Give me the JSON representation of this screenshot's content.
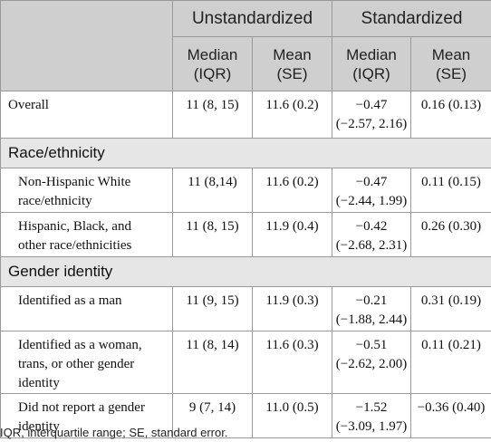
{
  "header": {
    "group_unstd": "Unstandardized",
    "group_std": "Standardized",
    "cols": [
      {
        "line1": "Median",
        "line2": "(IQR)"
      },
      {
        "line1": "Mean",
        "line2": "(SE)"
      },
      {
        "line1": "Median",
        "line2": "(IQR)"
      },
      {
        "line1": "Mean",
        "line2": "(SE)"
      }
    ]
  },
  "overall": {
    "label": "Overall",
    "cells": [
      {
        "l1": "11 (8, 15)",
        "l2": ""
      },
      {
        "l1": "11.6 (0.2)",
        "l2": ""
      },
      {
        "l1": "−0.47",
        "l2": "(−2.57, 2.16)"
      },
      {
        "l1": "0.16 (0.13)",
        "l2": ""
      }
    ]
  },
  "sections": [
    {
      "title": "Race/ethnicity",
      "rows": [
        {
          "label1": "Non-Hispanic White",
          "label2": "race/ethnicity",
          "label3": "",
          "cells": [
            {
              "l1": "11 (8,14)",
              "l2": ""
            },
            {
              "l1": "11.6 (0.2)",
              "l2": ""
            },
            {
              "l1": "−0.47",
              "l2": "(−2.44, 1.99)"
            },
            {
              "l1": "0.11 (0.15)",
              "l2": ""
            }
          ]
        },
        {
          "label1": "Hispanic, Black, and",
          "label2": "other race/ethnicities",
          "label3": "",
          "cells": [
            {
              "l1": "11 (8, 15)",
              "l2": ""
            },
            {
              "l1": "11.9 (0.4)",
              "l2": ""
            },
            {
              "l1": "−0.42",
              "l2": "(−2.68, 2.31)"
            },
            {
              "l1": "0.26 (0.30)",
              "l2": ""
            }
          ]
        }
      ]
    },
    {
      "title": "Gender identity",
      "rows": [
        {
          "label1": "Identified as a man",
          "label2": "",
          "label3": "",
          "cells": [
            {
              "l1": "11 (9, 15)",
              "l2": ""
            },
            {
              "l1": "11.9 (0.3)",
              "l2": ""
            },
            {
              "l1": "−0.21",
              "l2": "(−1.88, 2.44)"
            },
            {
              "l1": "0.31 (0.19)",
              "l2": ""
            }
          ]
        },
        {
          "label1": "Identified as a woman,",
          "label2": "trans, or other gender",
          "label3": "identity",
          "cells": [
            {
              "l1": "11 (8, 14)",
              "l2": ""
            },
            {
              "l1": "11.6 (0.3)",
              "l2": ""
            },
            {
              "l1": "−0.51",
              "l2": "(−2.62, 2.00)"
            },
            {
              "l1": "0.11 (0.21)",
              "l2": ""
            }
          ]
        },
        {
          "label1": "Did not report a gender",
          "label2": "identity",
          "label3": "",
          "cells": [
            {
              "l1": "9 (7, 14)",
              "l2": ""
            },
            {
              "l1": "11.0 (0.5)",
              "l2": ""
            },
            {
              "l1": "−1.52",
              "l2": "(−3.09, 1.97)"
            },
            {
              "l1": "−0.36 (0.40)",
              "l2": ""
            }
          ]
        }
      ]
    }
  ],
  "footnote": "IQR, interquartile range; SE, standard error."
}
